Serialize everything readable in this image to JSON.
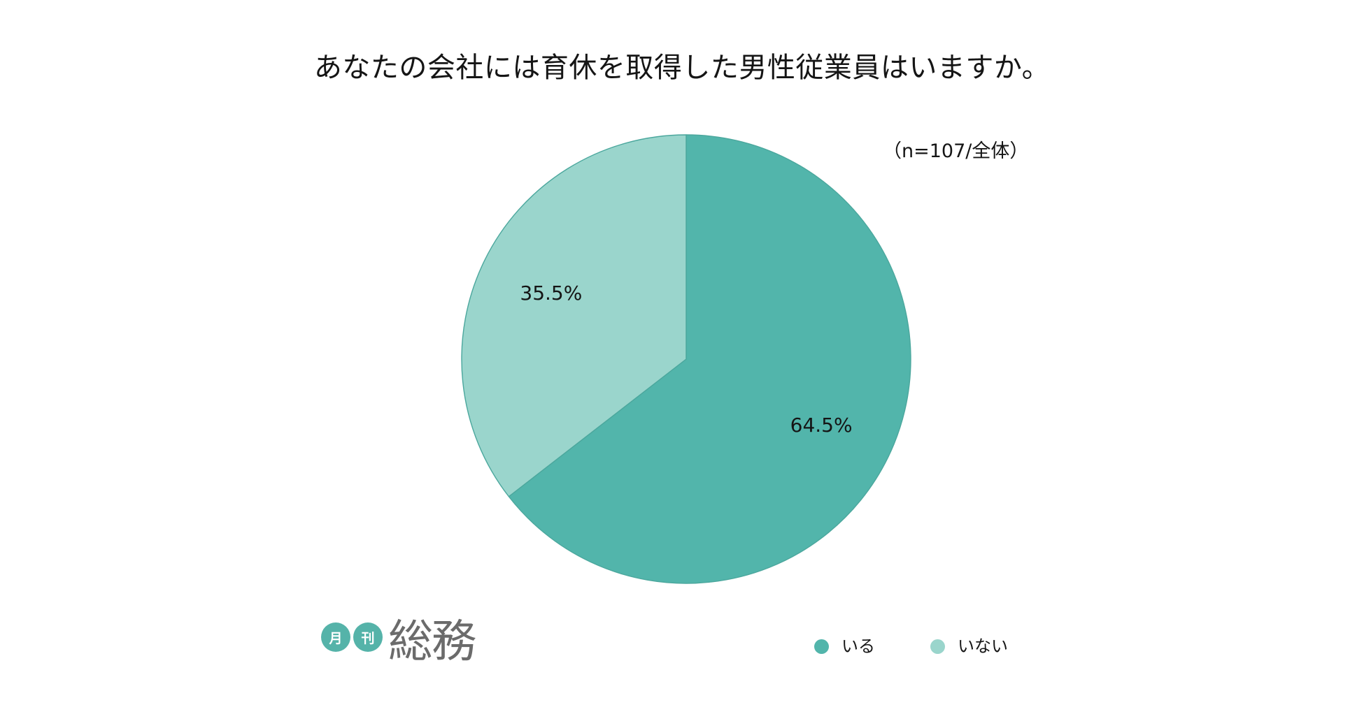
{
  "logo": {
    "badges": [
      "月",
      "刊"
    ],
    "wordmark": "総務"
  },
  "colors": {
    "logo_badge": "#55B3A9",
    "logo_text": "#6B6B6B",
    "slice_outline": "#4BA79D"
  },
  "chart_data": {
    "type": "pie",
    "title": "あなたの会社には育休を取得した男性従業員はいますか。",
    "subtitle": "（n=107/全体）",
    "unit": "%",
    "slices": [
      {
        "label": "いる",
        "value": 64.5,
        "color": "#52B5AB"
      },
      {
        "label": "いない",
        "value": 35.5,
        "color": "#9AD5CC"
      }
    ],
    "legend": "bottom-right"
  }
}
